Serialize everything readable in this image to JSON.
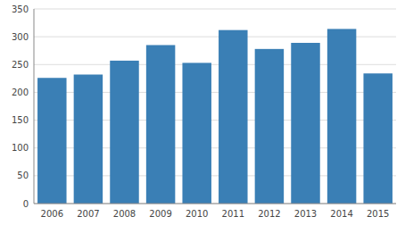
{
  "chart_data": {
    "type": "bar",
    "categories": [
      "2006",
      "2007",
      "2008",
      "2009",
      "2010",
      "2011",
      "2012",
      "2013",
      "2014",
      "2015"
    ],
    "values": [
      226,
      232,
      257,
      285,
      253,
      312,
      278,
      289,
      314,
      234
    ],
    "color": "#3a7fb5",
    "ylim": [
      0,
      350
    ],
    "yticks": [
      0,
      50,
      100,
      150,
      200,
      250,
      300,
      350
    ],
    "grid": true
  }
}
